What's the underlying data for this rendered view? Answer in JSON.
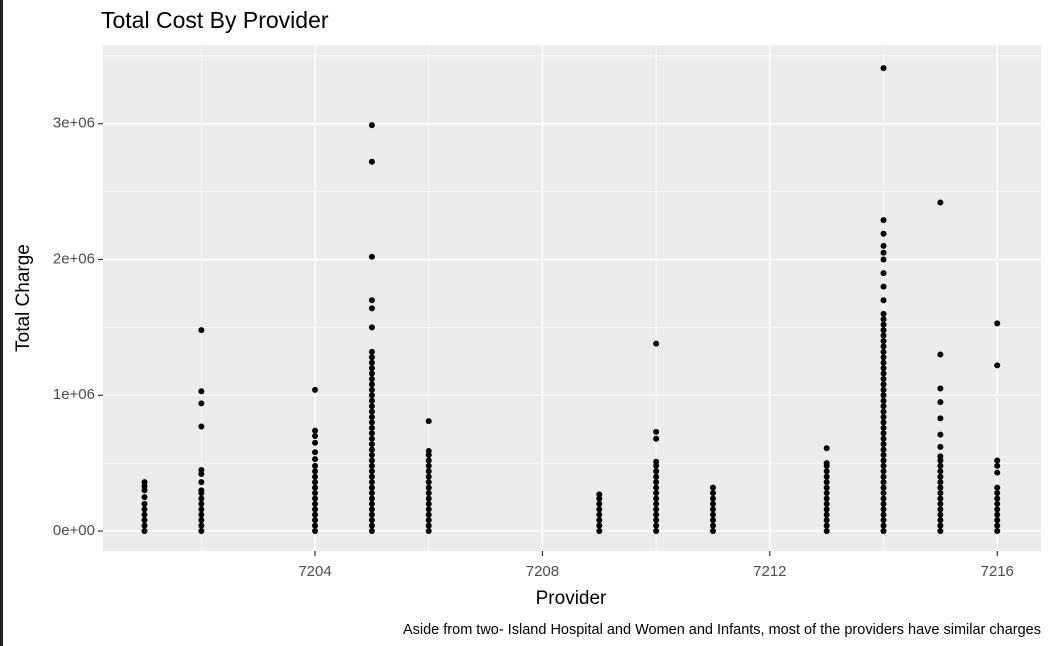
{
  "chart_data": {
    "type": "scatter",
    "title": "Total Cost By Provider",
    "x_label": "Provider",
    "y_label": "Total Charge",
    "caption": "Aside from two- Island Hospital and Women and Infants, most of the providers have similar charges",
    "color": "#000000",
    "xlim": [
      7200.27,
      7216.77
    ],
    "ylim": [
      -147000,
      3580000
    ],
    "xticks": [
      7204,
      7208,
      7212,
      7216
    ],
    "yticks": [
      {
        "value": 0,
        "label": "0e+00"
      },
      {
        "value": 1000000,
        "label": "1e+06"
      },
      {
        "value": 2000000,
        "label": "2e+06"
      },
      {
        "value": 3000000,
        "label": "3e+06"
      }
    ],
    "xminor": [
      7202,
      7206,
      7210,
      7214
    ],
    "yminor": [
      500000,
      1500000,
      2500000,
      3500000
    ],
    "grid": true,
    "groups": [
      {
        "x": 7201,
        "y": [
          0,
          40000,
          80000,
          120000,
          160000,
          200000,
          250000,
          300000,
          330000,
          360000
        ]
      },
      {
        "x": 7202,
        "y": [
          0,
          40000,
          80000,
          120000,
          160000,
          200000,
          240000,
          280000,
          300000,
          360000,
          420000,
          450000,
          770000,
          940000,
          1030000,
          1480000
        ]
      },
      {
        "x": 7204,
        "y": [
          0,
          40000,
          80000,
          120000,
          160000,
          200000,
          240000,
          280000,
          320000,
          360000,
          400000,
          440000,
          480000,
          530000,
          580000,
          650000,
          700000,
          740000,
          1040000
        ]
      },
      {
        "x": 7205,
        "y": [
          0,
          40000,
          80000,
          120000,
          160000,
          200000,
          240000,
          280000,
          320000,
          360000,
          400000,
          440000,
          480000,
          520000,
          560000,
          600000,
          640000,
          680000,
          720000,
          760000,
          800000,
          840000,
          880000,
          920000,
          960000,
          1000000,
          1040000,
          1080000,
          1120000,
          1160000,
          1200000,
          1240000,
          1280000,
          1320000,
          1500000,
          1640000,
          1700000,
          2020000,
          2720000,
          2990000
        ]
      },
      {
        "x": 7206,
        "y": [
          0,
          40000,
          80000,
          120000,
          160000,
          200000,
          240000,
          280000,
          320000,
          360000,
          400000,
          440000,
          480000,
          520000,
          560000,
          590000,
          810000
        ]
      },
      {
        "x": 7209,
        "y": [
          0,
          40000,
          80000,
          120000,
          160000,
          200000,
          240000,
          270000
        ]
      },
      {
        "x": 7210,
        "y": [
          0,
          40000,
          80000,
          120000,
          160000,
          200000,
          240000,
          280000,
          320000,
          360000,
          400000,
          440000,
          480000,
          510000,
          680000,
          730000,
          1380000
        ]
      },
      {
        "x": 7211,
        "y": [
          0,
          40000,
          80000,
          120000,
          160000,
          200000,
          240000,
          280000,
          320000
        ]
      },
      {
        "x": 7213,
        "y": [
          0,
          40000,
          80000,
          120000,
          160000,
          200000,
          240000,
          280000,
          320000,
          360000,
          400000,
          440000,
          480000,
          500000,
          610000
        ]
      },
      {
        "x": 7214,
        "y": [
          0,
          40000,
          80000,
          120000,
          160000,
          200000,
          240000,
          280000,
          320000,
          360000,
          400000,
          440000,
          480000,
          520000,
          560000,
          600000,
          640000,
          680000,
          720000,
          760000,
          800000,
          840000,
          880000,
          920000,
          960000,
          1000000,
          1040000,
          1080000,
          1120000,
          1160000,
          1200000,
          1240000,
          1280000,
          1320000,
          1360000,
          1400000,
          1440000,
          1480000,
          1520000,
          1560000,
          1600000,
          1700000,
          1800000,
          1900000,
          2000000,
          2050000,
          2100000,
          2190000,
          2290000,
          3410000
        ]
      },
      {
        "x": 7215,
        "y": [
          0,
          40000,
          80000,
          120000,
          160000,
          200000,
          240000,
          280000,
          320000,
          360000,
          400000,
          440000,
          480000,
          520000,
          550000,
          620000,
          710000,
          830000,
          950000,
          1050000,
          1300000,
          2420000
        ]
      },
      {
        "x": 7216,
        "y": [
          0,
          40000,
          80000,
          120000,
          160000,
          200000,
          240000,
          280000,
          320000,
          430000,
          480000,
          520000,
          1220000,
          1530000
        ]
      }
    ]
  }
}
